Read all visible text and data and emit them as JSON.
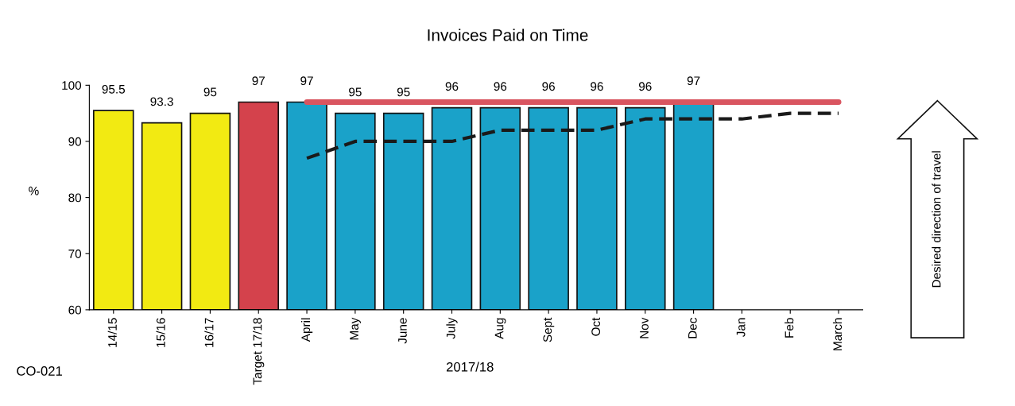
{
  "chart_data": {
    "type": "bar",
    "title": "Invoices Paid on Time",
    "xlabel": "2017/18",
    "ylabel": "%",
    "categories": [
      "14/15",
      "15/16",
      "16/17",
      "Target 17/18",
      "April",
      "May",
      "June",
      "July",
      "Aug",
      "Sept",
      "Oct",
      "Nov",
      "Dec",
      "Jan",
      "Feb",
      "March"
    ],
    "series": [
      {
        "values": [
          95.5,
          93.3,
          95,
          97,
          97,
          95,
          95,
          96,
          96,
          96,
          96,
          96,
          97,
          null,
          null,
          null
        ],
        "colors": [
          "#f2ea12",
          "#f2ea12",
          "#f2ea12",
          "#d4424c",
          "#1aa2c9",
          "#1aa2c9",
          "#1aa2c9",
          "#1aa2c9",
          "#1aa2c9",
          "#1aa2c9",
          "#1aa2c9",
          "#1aa2c9",
          "#1aa2c9",
          "#1aa2c9",
          "#1aa2c9",
          "#1aa2c9"
        ],
        "data_labels": true
      },
      {
        "type": "line",
        "color": "#d95560",
        "line_style": "solid",
        "values": [
          null,
          null,
          null,
          null,
          97,
          97,
          97,
          97,
          97,
          97,
          97,
          97,
          97,
          97,
          97,
          97
        ]
      },
      {
        "type": "line",
        "color": "#1a1a1a",
        "line_style": "dashed",
        "values": [
          null,
          null,
          null,
          null,
          87,
          90,
          90,
          90,
          92,
          92,
          92,
          94,
          94,
          94,
          95,
          95
        ]
      }
    ],
    "ylim": [
      60,
      100
    ],
    "yticks": [
      60,
      70,
      80,
      90,
      100
    ],
    "grid": false,
    "legend": false,
    "annotations": [
      "CO-021",
      "Desired direction of travel"
    ]
  }
}
